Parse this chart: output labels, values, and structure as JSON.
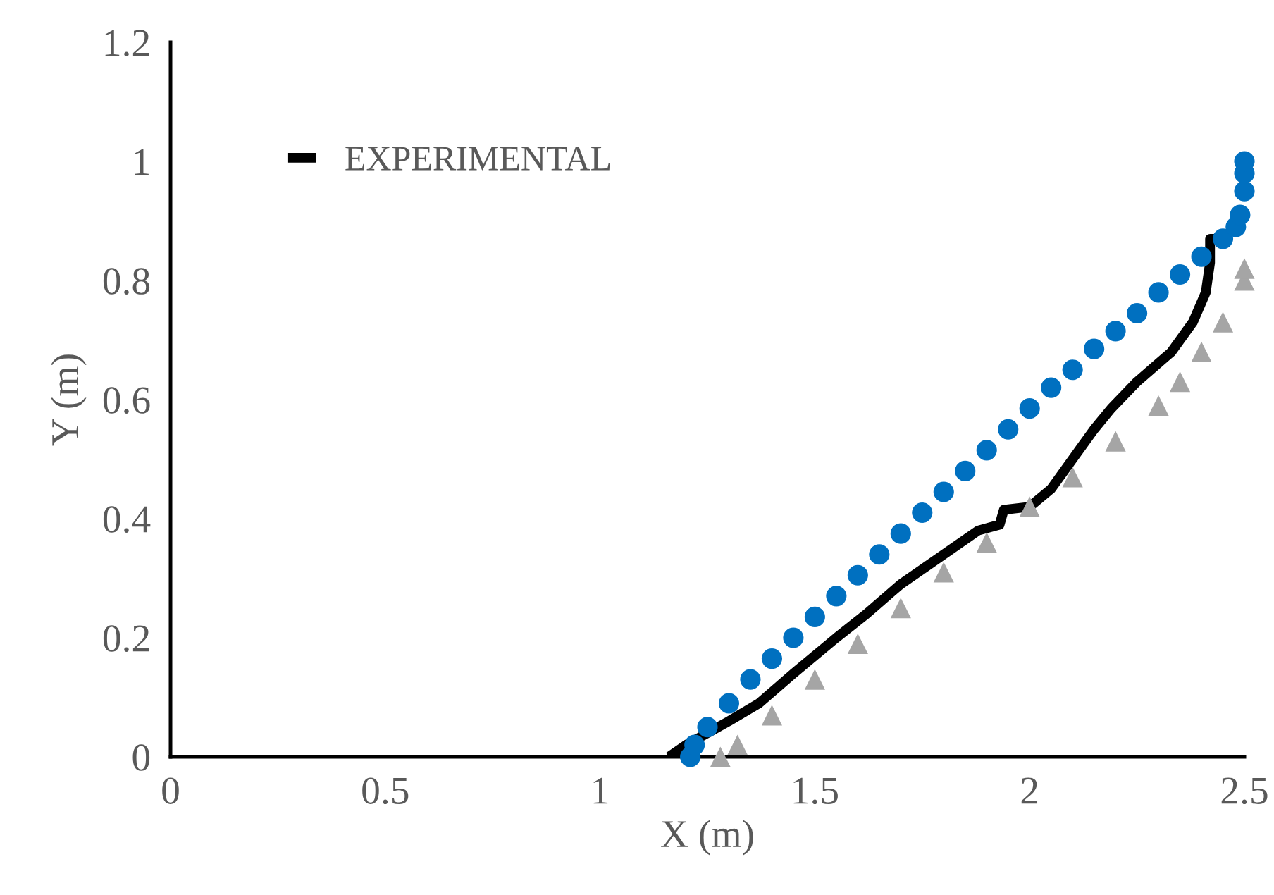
{
  "chart_data": {
    "type": "scatter",
    "xlabel": "X (m)",
    "ylabel": "Y (m)",
    "xlim": [
      0,
      2.5
    ],
    "ylim": [
      0,
      1.2
    ],
    "xticks": [
      0,
      0.5,
      1,
      1.5,
      2,
      2.5
    ],
    "yticks": [
      0,
      0.2,
      0.4,
      0.6,
      0.8,
      1,
      1.2
    ],
    "grid": false,
    "legend": "top left",
    "series": [
      {
        "name": "EXPERIMENTAL",
        "type": "line",
        "marker": "none",
        "line_style": "solid",
        "color": "#000000",
        "x": [
          1.16,
          1.2,
          1.25,
          1.3,
          1.37,
          1.45,
          1.55,
          1.62,
          1.7,
          1.8,
          1.88,
          1.93,
          1.94,
          2.0,
          2.05,
          2.1,
          2.15,
          2.19,
          2.25,
          2.33,
          2.38,
          2.41,
          2.42,
          2.42,
          2.44
        ],
        "values": [
          0,
          0.02,
          0.04,
          0.06,
          0.09,
          0.14,
          0.2,
          0.24,
          0.29,
          0.34,
          0.38,
          0.39,
          0.415,
          0.42,
          0.45,
          0.5,
          0.55,
          0.585,
          0.63,
          0.68,
          0.73,
          0.78,
          0.83,
          0.87,
          0.87
        ]
      },
      {
        "marker": "circle",
        "color": "#0070c0",
        "x": [
          1.21,
          1.22,
          1.25,
          1.3,
          1.35,
          1.4,
          1.45,
          1.5,
          1.55,
          1.6,
          1.65,
          1.7,
          1.75,
          1.8,
          1.85,
          1.9,
          1.95,
          2.0,
          2.05,
          2.1,
          2.15,
          2.2,
          2.25,
          2.3,
          2.35,
          2.4,
          2.45,
          2.48,
          2.49,
          2.5,
          2.5,
          2.5
        ],
        "values": [
          0,
          0.02,
          0.05,
          0.09,
          0.13,
          0.165,
          0.2,
          0.235,
          0.27,
          0.305,
          0.34,
          0.375,
          0.41,
          0.445,
          0.48,
          0.515,
          0.55,
          0.585,
          0.62,
          0.65,
          0.685,
          0.715,
          0.745,
          0.78,
          0.81,
          0.84,
          0.87,
          0.89,
          0.91,
          0.95,
          0.98,
          1.0
        ]
      },
      {
        "marker": "triangle",
        "color": "#a5a5a5",
        "x": [
          1.28,
          1.32,
          1.4,
          1.5,
          1.6,
          1.7,
          1.8,
          1.9,
          2.0,
          2.1,
          2.2,
          2.3,
          2.35,
          2.4,
          2.45,
          2.5,
          2.5
        ],
        "values": [
          0,
          0.02,
          0.07,
          0.13,
          0.19,
          0.25,
          0.31,
          0.36,
          0.42,
          0.47,
          0.53,
          0.59,
          0.63,
          0.68,
          0.73,
          0.8,
          0.82
        ]
      }
    ]
  }
}
